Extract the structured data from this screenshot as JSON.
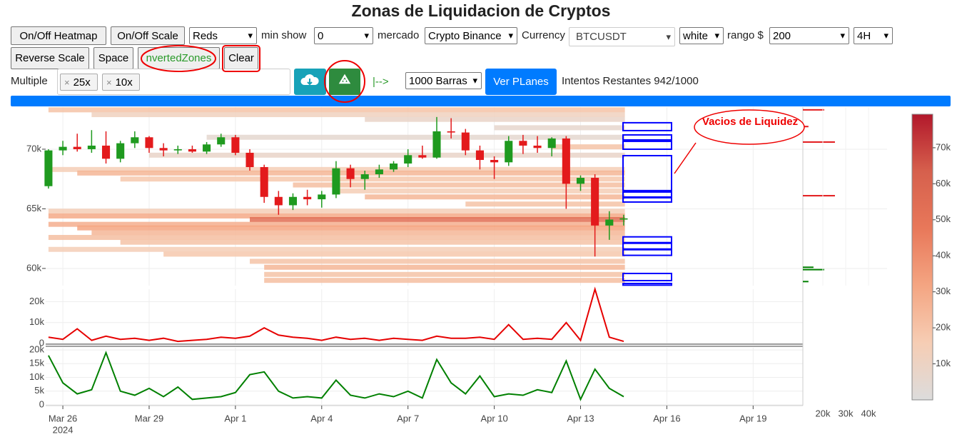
{
  "header": {
    "title": "Zonas de Liquidacion de Cryptos"
  },
  "controls": {
    "heatmap_button": "On/Off Heatmap",
    "scale_button": "On/Off Scale",
    "palette": "Reds",
    "min_show_label": "min show",
    "min_show": "0",
    "market_label": "mercado",
    "market": "Crypto Binance",
    "currency_label": "Currency",
    "currency": "BTCUSDT",
    "theme": "white",
    "range_label": "rango $",
    "range": "200",
    "interval": "4H",
    "reverse_button": "Reverse Scale",
    "space_button": "Space",
    "inverted_button": "nvertedZones",
    "clear_button": "Clear",
    "multiple_label": "Multiple",
    "tags": [
      "25x",
      "10x"
    ],
    "arrow": "|-->",
    "bars": "1000 Barras",
    "plans_button": "Ver PLanes",
    "attempts": "Intentos Restantes 942/1000"
  },
  "chart_data": {
    "type": "candlestick",
    "annotation": "Vacios de Liquidez",
    "xlim": [
      "2024-03-25 09:40",
      "2024-04-20 17:30"
    ],
    "xticks": [
      {
        "value": "2024-03-26",
        "label": "Mar 26"
      },
      {
        "value": "2024-03-29",
        "label": "Mar 29"
      },
      {
        "value": "2024-04-01",
        "label": "Apr 1"
      },
      {
        "value": "2024-04-04",
        "label": "Apr 4"
      },
      {
        "value": "2024-04-07",
        "label": "Apr 7"
      },
      {
        "value": "2024-04-10",
        "label": "Apr 10"
      },
      {
        "value": "2024-04-13",
        "label": "Apr 13"
      },
      {
        "value": "2024-04-16",
        "label": "Apr 16"
      },
      {
        "value": "2024-04-19",
        "label": "Apr 19"
      }
    ],
    "x_year": "2024",
    "ylim": [
      58560,
      73530
    ],
    "yticks": [
      {
        "value": 60000,
        "label": "60k"
      },
      {
        "value": 65000,
        "label": "65k"
      },
      {
        "value": 70000,
        "label": "70k"
      }
    ],
    "grid": true,
    "up_color": "#1f9a1f",
    "down_color": "#e31a1c",
    "candles": {
      "x": [
        "2024-03-25 12:00",
        "2024-03-26 00:00",
        "2024-03-26 12:00",
        "2024-03-27 00:00",
        "2024-03-27 12:00",
        "2024-03-28 00:00",
        "2024-03-28 12:00",
        "2024-03-29 00:00",
        "2024-03-29 12:00",
        "2024-03-30 00:00",
        "2024-03-30 12:00",
        "2024-03-31 00:00",
        "2024-03-31 12:00",
        "2024-04-01 00:00",
        "2024-04-01 12:00",
        "2024-04-02 00:00",
        "2024-04-02 12:00",
        "2024-04-03 00:00",
        "2024-04-03 12:00",
        "2024-04-04 00:00",
        "2024-04-04 12:00",
        "2024-04-05 00:00",
        "2024-04-05 12:00",
        "2024-04-06 00:00",
        "2024-04-06 12:00",
        "2024-04-07 00:00",
        "2024-04-07 12:00",
        "2024-04-08 00:00",
        "2024-04-08 12:00",
        "2024-04-09 00:00",
        "2024-04-09 12:00",
        "2024-04-10 00:00",
        "2024-04-10 12:00",
        "2024-04-11 00:00",
        "2024-04-11 12:00",
        "2024-04-12 00:00",
        "2024-04-12 12:00",
        "2024-04-13 00:00",
        "2024-04-13 12:00",
        "2024-04-14 00:00",
        "2024-04-14 12:00"
      ],
      "open": [
        66900,
        69900,
        70200,
        70000,
        70300,
        69200,
        70500,
        71000,
        70100,
        69900,
        70000,
        69800,
        70400,
        71000,
        69700,
        68500,
        66000,
        65300,
        66000,
        65800,
        66200,
        68400,
        67500,
        67900,
        68300,
        68800,
        69500,
        69300,
        71500,
        71400,
        69900,
        69100,
        68900,
        70700,
        70300,
        70100,
        70900,
        67100,
        67600,
        63600,
        64100
      ],
      "high": [
        70000,
        70700,
        71300,
        71600,
        71500,
        70700,
        71500,
        71100,
        70500,
        70300,
        70300,
        70600,
        71300,
        71200,
        70000,
        68700,
        66500,
        66300,
        66600,
        66500,
        69000,
        68700,
        68200,
        68700,
        69000,
        70000,
        70300,
        72700,
        72600,
        71700,
        70300,
        69400,
        71100,
        71200,
        71100,
        71000,
        71100,
        67800,
        67900,
        64800,
        64500
      ],
      "low": [
        66700,
        69500,
        69800,
        69700,
        68800,
        68900,
        70100,
        69700,
        69400,
        69600,
        69700,
        69600,
        70200,
        69500,
        68200,
        65500,
        64500,
        64900,
        65300,
        65100,
        65900,
        66800,
        66600,
        67600,
        68100,
        68500,
        69200,
        69200,
        70900,
        69500,
        68300,
        67500,
        68600,
        69600,
        69700,
        69400,
        65000,
        66500,
        61000,
        62400,
        63600
      ],
      "close": [
        69900,
        70200,
        70000,
        70300,
        69200,
        70500,
        71000,
        70100,
        69900,
        70000,
        69800,
        70400,
        71000,
        69700,
        68500,
        66000,
        65300,
        66000,
        65800,
        66200,
        68400,
        67500,
        67900,
        68300,
        68800,
        69500,
        69300,
        71500,
        71400,
        69900,
        69100,
        68900,
        70700,
        70300,
        70100,
        70900,
        67100,
        67600,
        63600,
        64100,
        64200
      ]
    },
    "heatmap": {
      "end": "2024-04-14 13:00",
      "levels": [
        73300,
        72900,
        72500,
        71800,
        71000,
        70200,
        69500,
        68300,
        68000,
        67500,
        67000,
        66500,
        66000,
        65400,
        64800,
        64400,
        64100,
        63700,
        63400,
        63000,
        62600,
        62200,
        61600,
        61200,
        60600,
        60100,
        59500,
        59000
      ],
      "starts": [
        "2024-03-25 12:00",
        "2024-03-27 00:00",
        "2024-04-05 12:00",
        "2024-04-10 00:00",
        "2024-03-31 00:00",
        "2024-04-12 00:00",
        "2024-03-29 00:00",
        "2024-03-25 12:00",
        "2024-03-26 12:00",
        "2024-03-28 00:00",
        "2024-04-03 00:00",
        "2024-04-04 12:00",
        "2024-04-05 12:00",
        "2024-04-09 00:00",
        "2024-03-25 12:00",
        "2024-03-25 12:00",
        "2024-04-01 12:00",
        "2024-03-25 12:00",
        "2024-03-26 12:00",
        "2024-03-27 00:00",
        "2024-03-25 12:00",
        "2024-03-28 00:00",
        "2024-03-25 12:00",
        "2024-03-29 12:00",
        "2024-04-01 12:00",
        "2024-04-02 00:00",
        "2024-04-02 00:00",
        "2024-04-02 00:00"
      ],
      "values": [
        20000,
        12000,
        8000,
        6000,
        5000,
        20000,
        8000,
        15000,
        25000,
        18000,
        22000,
        15000,
        25000,
        20000,
        15000,
        30000,
        55000,
        28000,
        32000,
        25000,
        22000,
        20000,
        15000,
        18000,
        20000,
        25000,
        20000,
        22000
      ]
    },
    "colorbar": {
      "range": [
        0,
        79300
      ],
      "colors": [
        "#dcdcdc",
        "#f6cdb4",
        "#f4a582",
        "#e8785a",
        "#d6604d",
        "#b2182b"
      ],
      "ticks": [
        {
          "value": 10000,
          "label": "10k"
        },
        {
          "value": 20000,
          "label": "20k"
        },
        {
          "value": 30000,
          "label": "30k"
        },
        {
          "value": 40000,
          "label": "40k"
        },
        {
          "value": 50000,
          "label": "50k"
        },
        {
          "value": 60000,
          "label": "60k"
        },
        {
          "value": 70000,
          "label": "70k"
        }
      ]
    },
    "gaps": [
      [
        71560,
        72220
      ],
      [
        70780,
        71200
      ],
      [
        70000,
        70660
      ],
      [
        66530,
        69460
      ],
      [
        65990,
        66410
      ],
      [
        65570,
        65930
      ],
      [
        62170,
        62650
      ],
      [
        61630,
        62110
      ],
      [
        61100,
        61570
      ],
      [
        58980,
        59580
      ],
      [
        58600,
        58740
      ]
    ],
    "gap_color": "#0000ff",
    "side_hist": {
      "xlim": [
        11250,
        42000
      ],
      "xticks": [
        {
          "value": 20000,
          "label": "20k"
        },
        {
          "value": 30000,
          "label": "30k"
        },
        {
          "value": 40000,
          "label": "40k"
        }
      ],
      "series": [
        {
          "color": "#e31a1c",
          "levels": [
            73300,
            71900,
            70600,
            66100
          ],
          "values": [
            20600,
            13700,
            25300,
            25300
          ]
        },
        {
          "color": "#008000",
          "levels": [
            60100,
            59900,
            58900
          ],
          "values": [
            15900,
            20600,
            13700
          ]
        }
      ]
    },
    "volume_panels": [
      {
        "color": "#e60000",
        "ylim": [
          0,
          26000
        ],
        "yticks": [
          0,
          {
            "value": 10000,
            "label": "10k"
          },
          {
            "value": 20000,
            "label": "20k"
          }
        ],
        "values": [
          3000,
          2000,
          7000,
          1500,
          3500,
          2000,
          2500,
          1500,
          2500,
          1000,
          1500,
          2000,
          3000,
          2500,
          3500,
          7500,
          4000,
          3000,
          2500,
          1500,
          3000,
          2000,
          2500,
          1500,
          2500,
          2000,
          1500,
          3500,
          2500,
          2500,
          3000,
          2000,
          9000,
          2000,
          2500,
          2000,
          10000,
          1500,
          26000,
          3000,
          1000
        ]
      },
      {
        "color": "#008000",
        "ylim": [
          0,
          20800
        ],
        "yticks": [
          0,
          {
            "value": 5000,
            "label": "5k"
          },
          {
            "value": 10000,
            "label": "10k"
          },
          {
            "value": 15000,
            "label": "15k"
          },
          {
            "value": 20000,
            "label": "20k"
          }
        ],
        "values": [
          18000,
          8000,
          4000,
          5500,
          19000,
          5000,
          3500,
          6000,
          3000,
          6500,
          2000,
          2500,
          3000,
          4500,
          11000,
          12000,
          5000,
          2500,
          3000,
          2500,
          9000,
          3500,
          2500,
          4000,
          3000,
          5000,
          2500,
          16500,
          8000,
          4000,
          10500,
          3000,
          4000,
          3500,
          5500,
          4500,
          16000,
          2000,
          13000,
          6000,
          3000
        ]
      }
    ]
  }
}
